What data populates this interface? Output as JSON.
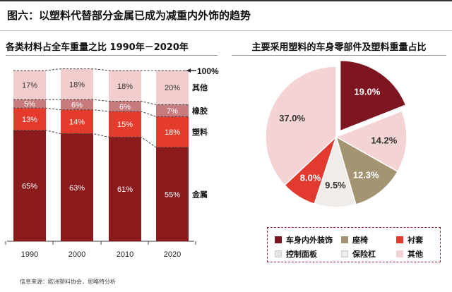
{
  "figure_title": "图六：以塑料代替部分金属已成为减重内外饰的趋势",
  "source": "信息来源：欧洲塑料协会，思略特分析",
  "colors": {
    "metal": "#8b1a1d",
    "plastic": "#e43b2c",
    "rubber": "#c87b7d",
    "other": "#f1cdcd",
    "interior": "#7d1620",
    "seat": "#a39472",
    "upholstery": "#e23a2e",
    "dashboard": "#e9e4e1",
    "bumper": "#f0ece9",
    "pie_other": "#f3d3d4"
  },
  "chart_data": [
    {
      "type": "bar",
      "stacked": true,
      "title": "各类材料占全车重量之比 1990年－2020年",
      "categories": [
        "1990",
        "2000",
        "2010",
        "2020"
      ],
      "series": [
        {
          "name": "金属",
          "values": [
            65,
            63,
            61,
            55
          ],
          "labels": [
            "65%",
            "63%",
            "61%",
            "55%"
          ]
        },
        {
          "name": "塑料",
          "values": [
            13,
            14,
            15,
            18
          ],
          "labels": [
            "13%",
            "14%",
            "15%",
            "18%"
          ]
        },
        {
          "name": "橡胶",
          "values": [
            5,
            6,
            6,
            7
          ],
          "labels": [
            "5%",
            "6%",
            "6%",
            "7%"
          ]
        },
        {
          "name": "其他",
          "values": [
            17,
            18,
            18,
            20
          ],
          "labels": [
            "17%",
            "18%",
            "18%",
            "20%"
          ]
        }
      ],
      "total_label": "100%",
      "ylim": [
        0,
        100
      ]
    },
    {
      "type": "pie",
      "title": "主要采用塑料的车身零部件及塑料重量占比",
      "slices": [
        {
          "name": "车身内外装饰",
          "value": 19.0,
          "label": "19.0%"
        },
        {
          "name": "其他",
          "value": 14.2,
          "label": "14.2%"
        },
        {
          "name": "座椅",
          "value": 12.3,
          "label": "12.3%"
        },
        {
          "name": "保险杠",
          "value": 9.5,
          "label": "9.5%"
        },
        {
          "name": "衬套",
          "value": 8.0,
          "label": "8.0%"
        },
        {
          "name": "控制面板",
          "value": 37.0,
          "label": "37.0%"
        }
      ],
      "legend": {
        "placement": "bottom",
        "items": [
          "车身内外装饰",
          "座椅",
          "衬套",
          "控制面板",
          "保险杠",
          "其他"
        ]
      }
    }
  ]
}
